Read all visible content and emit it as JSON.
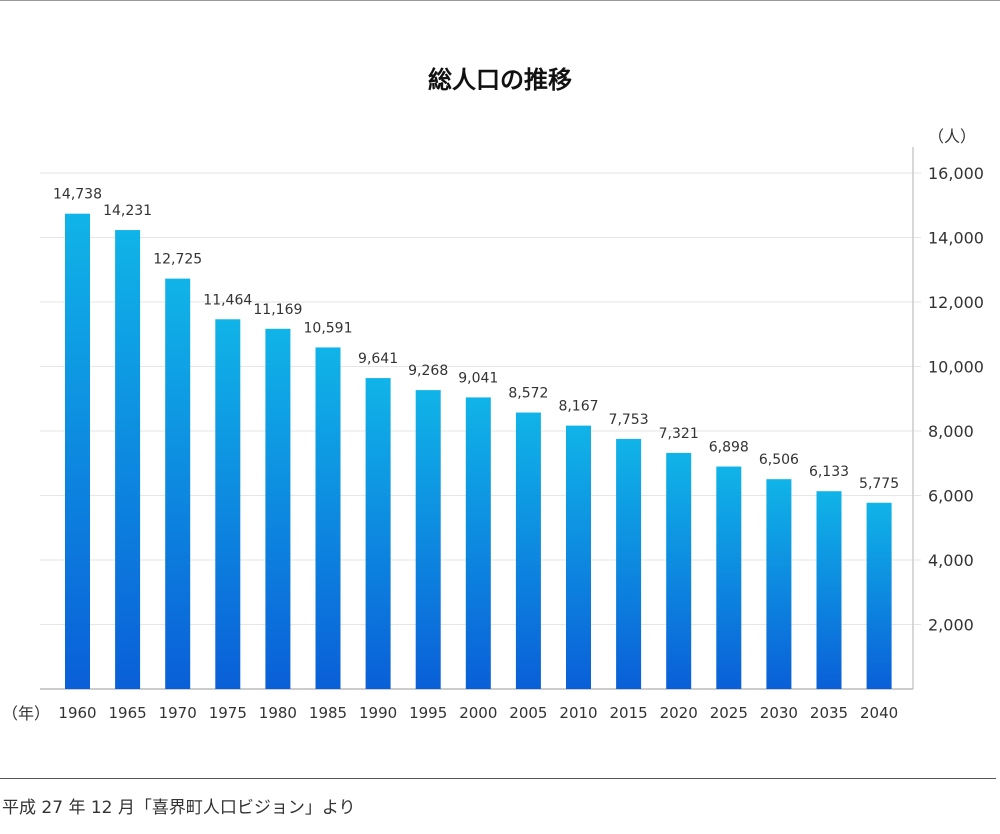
{
  "chart_data": {
    "type": "bar",
    "title": "総人口の推移",
    "categories": [
      "1960",
      "1965",
      "1970",
      "1975",
      "1980",
      "1985",
      "1990",
      "1995",
      "2000",
      "2005",
      "2010",
      "2015",
      "2020",
      "2025",
      "2030",
      "2035",
      "2040"
    ],
    "values": [
      14738,
      14231,
      12725,
      11464,
      11169,
      10591,
      9641,
      9268,
      9041,
      8572,
      8167,
      7753,
      7321,
      6898,
      6506,
      6133,
      5775
    ],
    "data_labels": [
      "14,738",
      "14,231",
      "12,725",
      "11,464",
      "11,169",
      "10,591",
      "9,641",
      "9,268",
      "9,041",
      "8,572",
      "8,167",
      "7,753",
      "7,321",
      "6,898",
      "6,506",
      "6,133",
      "5,775"
    ],
    "xlabel": "（年）",
    "ylabel": "（人）",
    "ylim": [
      0,
      16000
    ],
    "yticks": [
      2000,
      4000,
      6000,
      8000,
      10000,
      12000,
      14000,
      16000
    ],
    "ytick_labels": [
      "2,000",
      "4,000",
      "6,000",
      "8,000",
      "10,000",
      "12,000",
      "14,000",
      "16,000"
    ],
    "grid": true,
    "y_axis_side": "right",
    "colors": {
      "bar_top": "#10b4e8",
      "bar_bottom": "#0a5fd8",
      "grid": "#e6e6e6",
      "axis": "#cccccc"
    }
  },
  "source": "平成 27 年 12 月「喜界町人口ビジョン」より"
}
